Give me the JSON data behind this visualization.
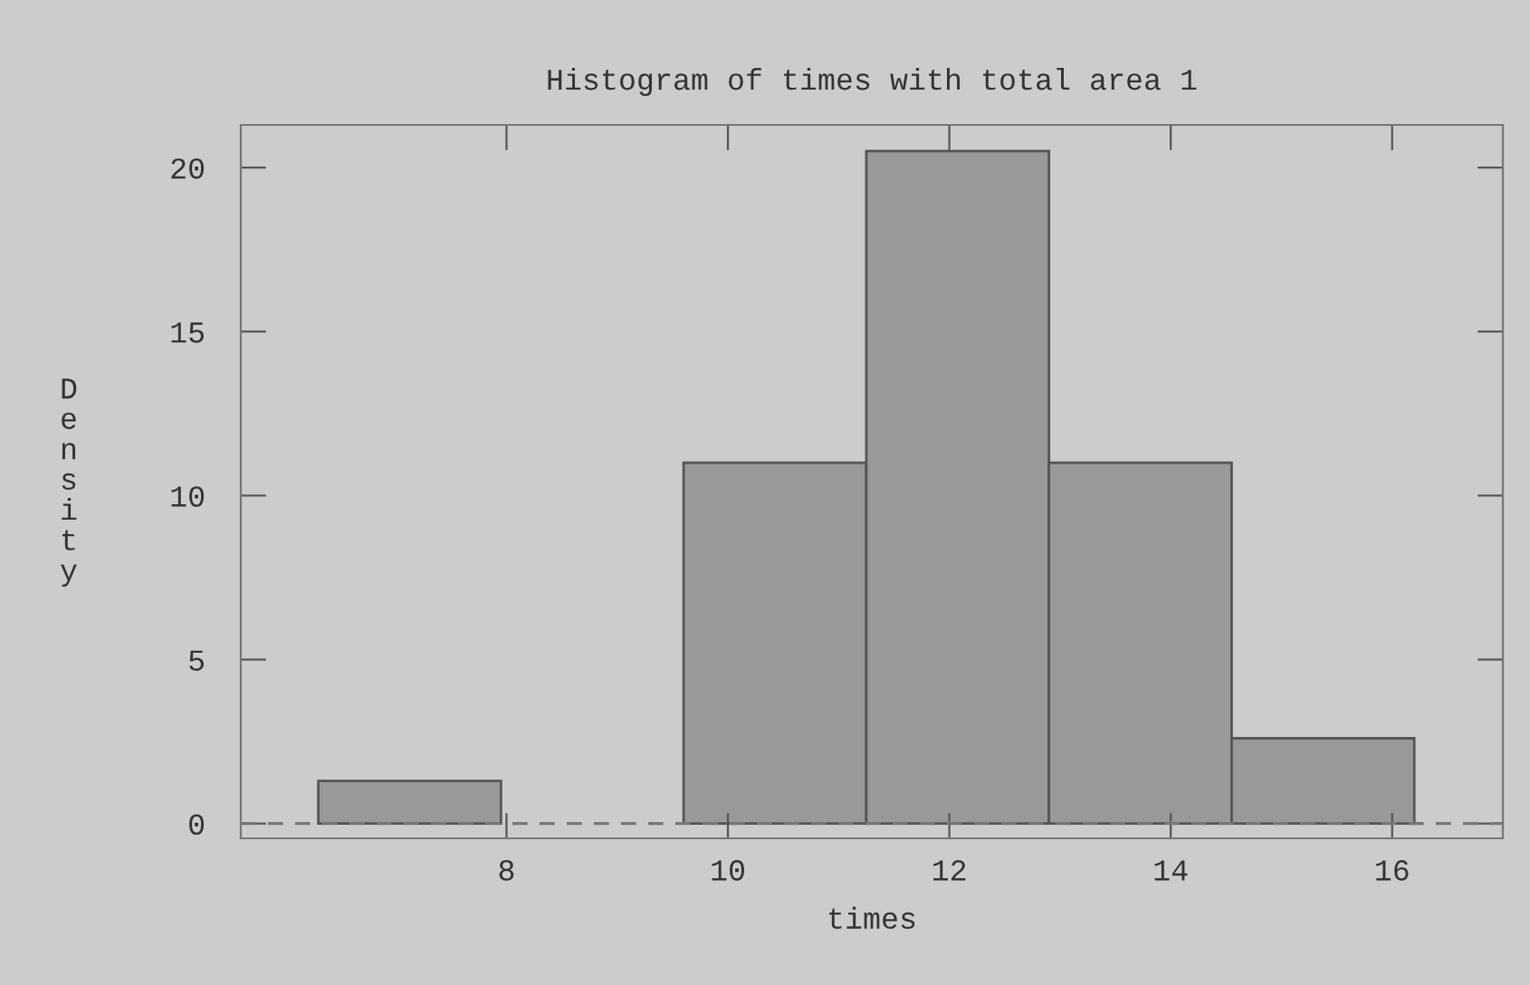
{
  "chart_data": {
    "type": "histogram",
    "title": "Histogram of times with total area 1",
    "xlabel": "times",
    "ylabel": "Density",
    "bins": [
      6.3,
      7.95,
      9.6,
      11.25,
      12.9,
      14.55,
      16.2
    ],
    "values": [
      1.3,
      0,
      11.0,
      20.5,
      11.0,
      2.6
    ],
    "color": "#999999",
    "xlim": [
      5.6,
      17
    ],
    "xticks": [
      8,
      10,
      12,
      14,
      16
    ],
    "ylim": [
      -0.45,
      21.3
    ],
    "yticks": [
      0,
      5,
      10,
      15,
      20
    ],
    "ref_lines": [
      {
        "axis": "y",
        "value": 0,
        "line_style": "dashed",
        "color": "#777777"
      }
    ],
    "grid": false,
    "legend": false
  }
}
